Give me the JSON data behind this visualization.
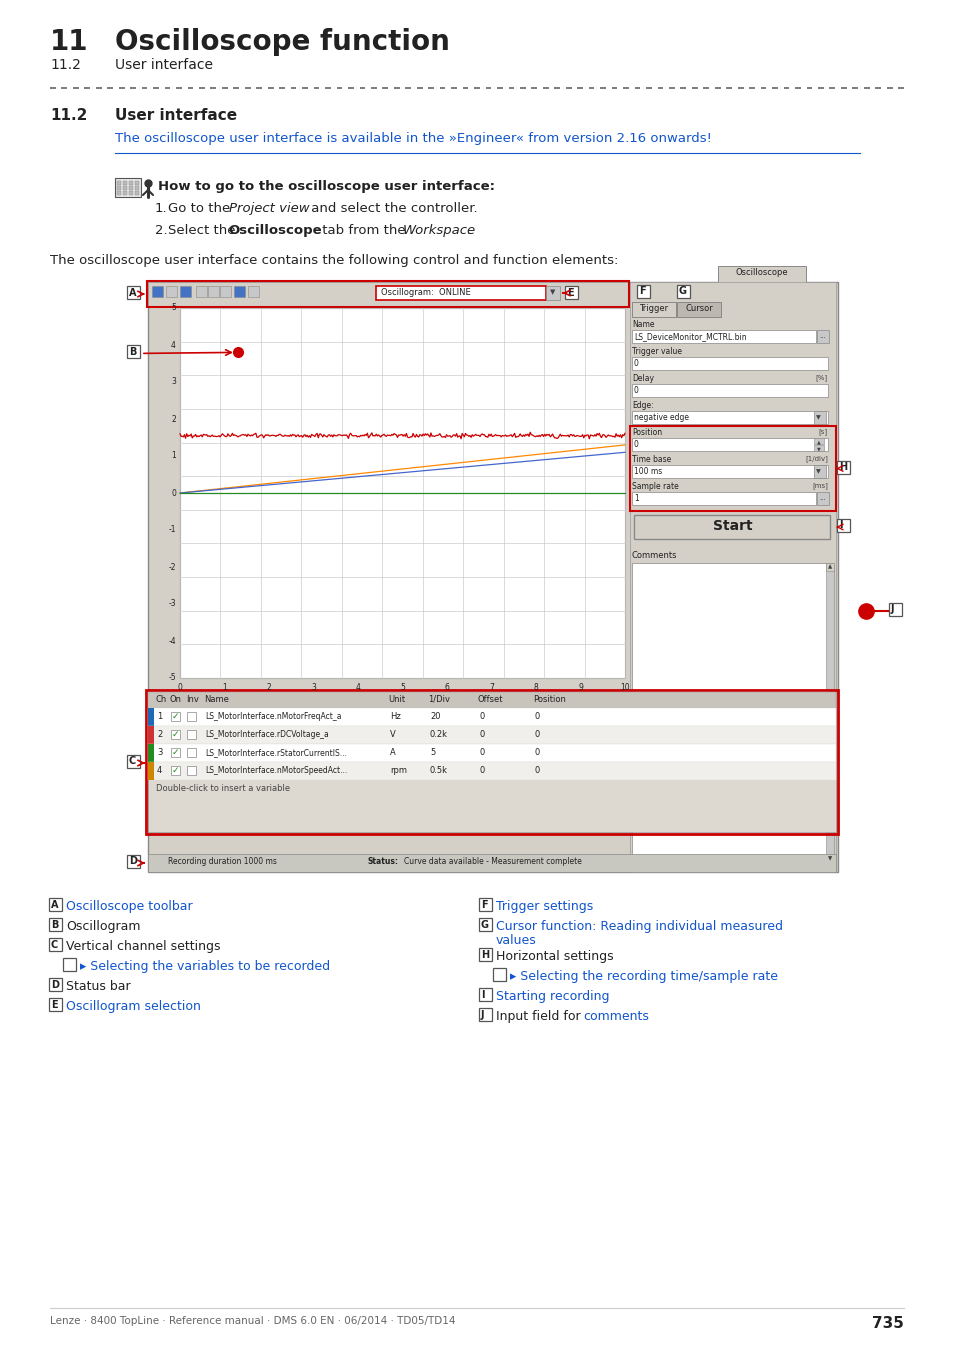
{
  "page_bg": "#ffffff",
  "header_num": "11",
  "header_title": "Oscilloscope function",
  "header_sub_num": "11.2",
  "header_sub_title": "User interface",
  "section_num": "11.2",
  "section_title": "User interface",
  "note_text": "The oscilloscope user interface is available in the »Engineer« from version 2.16 onwards!",
  "note_color": "#1155cc",
  "intro_text": "The oscilloscope user interface contains the following control and function elements:",
  "howto_bold": "How to go to the oscilloscope user interface:",
  "footer_text": "Lenze · 8400 TopLine · Reference manual · DMS 6.0 EN · 06/2014 · TD05/TD14",
  "page_number": "735",
  "link_color": "#1155cc",
  "red_color": "#cc0000",
  "gray_bg": "#d4d0c8",
  "white": "#ffffff",
  "dark_line": "#555555"
}
